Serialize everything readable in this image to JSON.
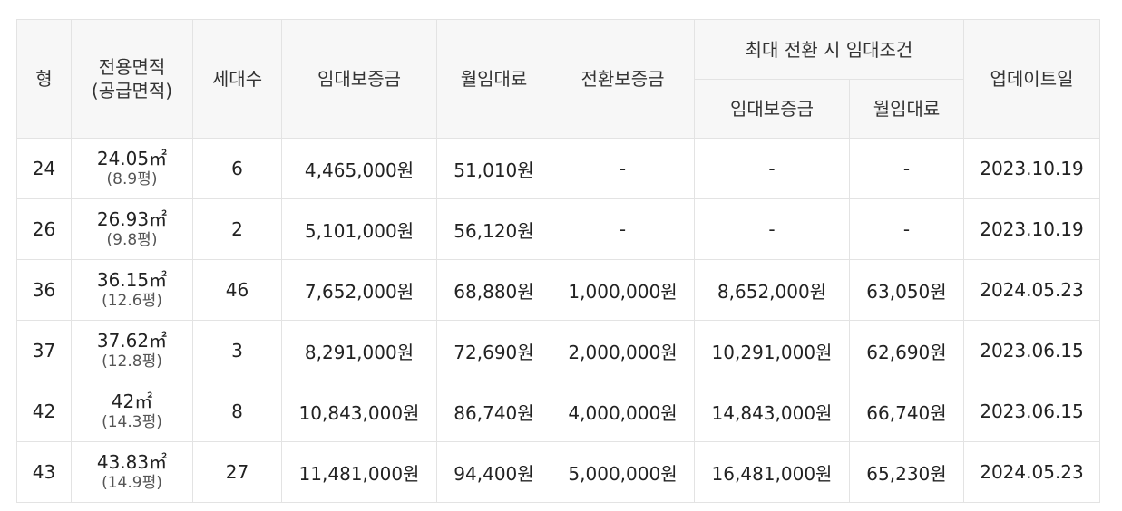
{
  "header": {
    "col_type": "형",
    "col_area": "전용면적",
    "col_area_sub": "(공급면적)",
    "col_households": "세대수",
    "col_deposit": "임대보증금",
    "col_monthly": "월임대료",
    "col_convert_deposit": "전환보증금",
    "col_max_group": "최대 전환 시 임대조건",
    "col_max_deposit": "임대보증금",
    "col_max_monthly": "월임대료",
    "col_update": "업데이트일"
  },
  "rows": [
    {
      "type": "24",
      "area": "24.05㎡",
      "area_py": "(8.9평)",
      "households": "6",
      "deposit": "4,465,000원",
      "monthly": "51,010원",
      "convert": "-",
      "max_deposit": "-",
      "max_monthly": "-",
      "updated": "2023.10.19"
    },
    {
      "type": "26",
      "area": "26.93㎡",
      "area_py": "(9.8평)",
      "households": "2",
      "deposit": "5,101,000원",
      "monthly": "56,120원",
      "convert": "-",
      "max_deposit": "-",
      "max_monthly": "-",
      "updated": "2023.10.19"
    },
    {
      "type": "36",
      "area": "36.15㎡",
      "area_py": "(12.6평)",
      "households": "46",
      "deposit": "7,652,000원",
      "monthly": "68,880원",
      "convert": "1,000,000원",
      "max_deposit": "8,652,000원",
      "max_monthly": "63,050원",
      "updated": "2024.05.23"
    },
    {
      "type": "37",
      "area": "37.62㎡",
      "area_py": "(12.8평)",
      "households": "3",
      "deposit": "8,291,000원",
      "monthly": "72,690원",
      "convert": "2,000,000원",
      "max_deposit": "10,291,000원",
      "max_monthly": "62,690원",
      "updated": "2023.06.15"
    },
    {
      "type": "42",
      "area": "42㎡",
      "area_py": "(14.3평)",
      "households": "8",
      "deposit": "10,843,000원",
      "monthly": "86,740원",
      "convert": "4,000,000원",
      "max_deposit": "14,843,000원",
      "max_monthly": "66,740원",
      "updated": "2023.06.15"
    },
    {
      "type": "43",
      "area": "43.83㎡",
      "area_py": "(14.9평)",
      "households": "27",
      "deposit": "11,481,000원",
      "monthly": "94,400원",
      "convert": "5,000,000원",
      "max_deposit": "16,481,000원",
      "max_monthly": "65,230원",
      "updated": "2024.05.23"
    }
  ]
}
